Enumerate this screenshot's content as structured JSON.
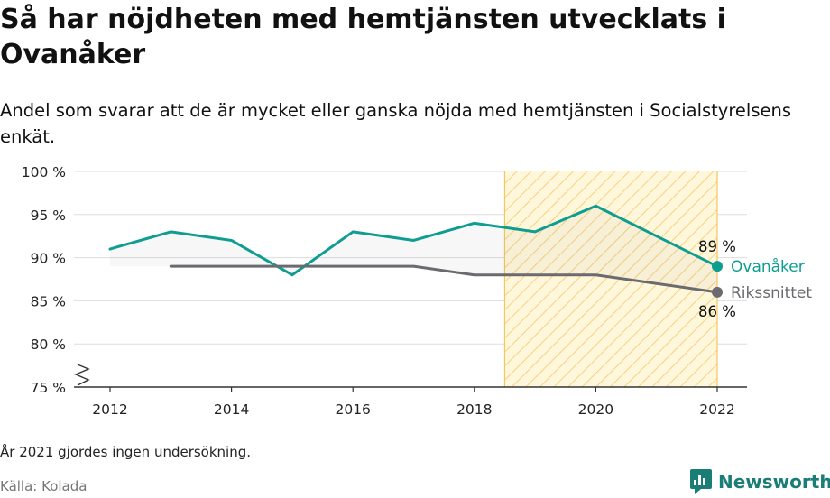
{
  "title": "Så har nöjdheten med hemtjänsten utvecklats i Ovanåker",
  "subtitle": "Andel som svarar att de är mycket eller ganska nöjda med hemtjänsten i Socialstyrelsens enkät.",
  "note": "År 2021 gjordes ingen undersökning.",
  "source": "Källa: Kolada",
  "brand": "Newsworthy",
  "chart_data": {
    "type": "line",
    "x": [
      2012,
      2013,
      2014,
      2015,
      2016,
      2017,
      2018,
      2019,
      2020,
      2022
    ],
    "series": [
      {
        "name": "Ovanåker",
        "color": "#0f9d92",
        "values": [
          91,
          93,
          92,
          88,
          93,
          92,
          94,
          93,
          96,
          89
        ],
        "end_label": "89 %"
      },
      {
        "name": "Rikssnittet",
        "color": "#6b6a6f",
        "values": [
          null,
          89,
          89,
          89,
          89,
          89,
          88,
          88,
          88,
          86
        ],
        "end_label": "86 %"
      }
    ],
    "xticks": [
      "2012",
      "2014",
      "2016",
      "2018",
      "2020",
      "2022"
    ],
    "yticks": [
      "75 %",
      "80 %",
      "85 %",
      "90 %",
      "95 %",
      "100 %"
    ],
    "ylim": [
      75,
      100
    ],
    "xlim": [
      2011.5,
      2022.5
    ],
    "highlight_range": [
      2018.5,
      2022
    ],
    "grid": true,
    "broken_y_axis": true
  }
}
